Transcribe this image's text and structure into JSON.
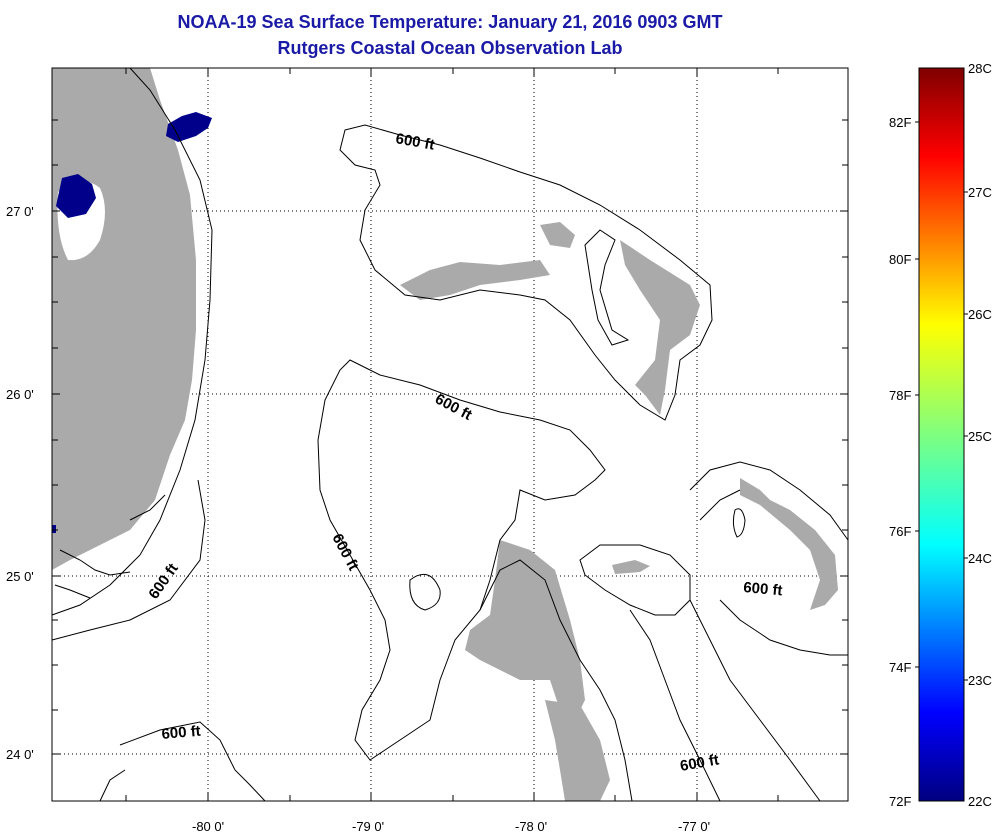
{
  "header": {
    "title": "NOAA-19 Sea Surface Temperature:  January 21, 2016 0903 GMT",
    "subtitle": "Rutgers Coastal Ocean Observation Lab"
  },
  "axes": {
    "lat_labels": [
      "27 0'",
      "26 0'",
      "25 0'",
      "24 0'"
    ],
    "lon_labels": [
      "-80 0'",
      "-79 0'",
      "-78 0'",
      "-77 0'"
    ]
  },
  "contour_labels": [
    "600 ft",
    "600 ft",
    "600 ft",
    "600 ft",
    "600 ft",
    "600 ft"
  ],
  "colorbar": {
    "celsius_labels": [
      "28C",
      "27C",
      "26C",
      "25C",
      "24C",
      "23C",
      "22C"
    ],
    "fahrenheit_labels": [
      "82F",
      "80F",
      "78F",
      "76F",
      "74F",
      "72F"
    ]
  },
  "colors": {
    "land": "#aaaaaa",
    "title": "#1a1aa6",
    "sst_cold": "#00008b"
  }
}
